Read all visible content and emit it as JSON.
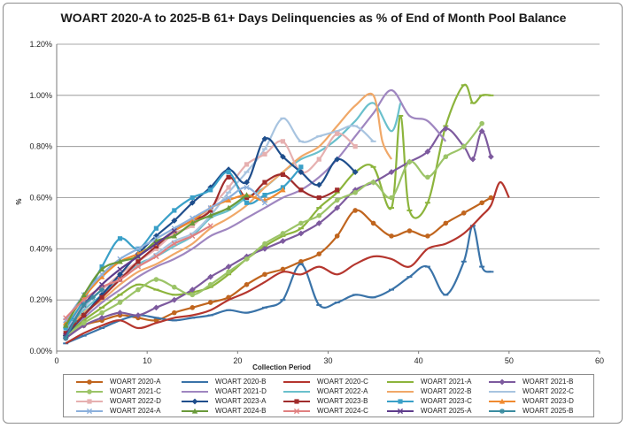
{
  "chart_data": {
    "type": "line",
    "title": "WOART 2020-A to 2025-B 61+ Days Delinquencies as % of End of Month Pool Balance",
    "xlabel": "Collection Period",
    "ylabel": "%",
    "xlim": [
      0,
      60
    ],
    "ylim": [
      0,
      1.2
    ],
    "x_ticks": [
      "0",
      "10",
      "20",
      "30",
      "40",
      "50",
      "60"
    ],
    "y_ticks": [
      "0.00%",
      "0.20%",
      "0.40%",
      "0.60%",
      "0.80%",
      "1.00%",
      "1.20%"
    ],
    "grid": true,
    "legend_position": "bottom",
    "series": [
      {
        "name": "WOART 2020-A",
        "color": "#c0651e",
        "marker": "circle",
        "x": [
          1,
          3,
          5,
          7,
          9,
          11,
          13,
          15,
          17,
          19,
          21,
          23,
          25,
          27,
          29,
          31,
          33,
          35,
          37,
          39,
          41,
          43,
          45,
          47,
          48
        ],
        "values": [
          0.05,
          0.1,
          0.12,
          0.14,
          0.13,
          0.12,
          0.15,
          0.17,
          0.19,
          0.21,
          0.26,
          0.3,
          0.32,
          0.35,
          0.38,
          0.45,
          0.55,
          0.5,
          0.45,
          0.47,
          0.45,
          0.5,
          0.54,
          0.58,
          0.6
        ]
      },
      {
        "name": "WOART 2020-B",
        "color": "#3a73a8",
        "marker": "dash",
        "x": [
          1,
          3,
          5,
          7,
          9,
          11,
          13,
          15,
          17,
          19,
          21,
          23,
          25,
          27,
          29,
          31,
          33,
          35,
          37,
          39,
          41,
          43,
          45,
          46,
          47,
          48
        ],
        "values": [
          0.03,
          0.06,
          0.09,
          0.12,
          0.14,
          0.13,
          0.12,
          0.13,
          0.14,
          0.16,
          0.15,
          0.17,
          0.2,
          0.34,
          0.18,
          0.19,
          0.22,
          0.21,
          0.24,
          0.29,
          0.33,
          0.22,
          0.35,
          0.49,
          0.33,
          0.31
        ]
      },
      {
        "name": "WOART 2020-C",
        "color": "#b5362e",
        "marker": "none",
        "x": [
          1,
          3,
          5,
          7,
          9,
          11,
          13,
          15,
          17,
          19,
          21,
          23,
          25,
          27,
          29,
          31,
          33,
          35,
          37,
          39,
          41,
          43,
          45,
          47,
          48,
          49,
          50
        ],
        "values": [
          0.03,
          0.07,
          0.1,
          0.12,
          0.09,
          0.11,
          0.13,
          0.14,
          0.16,
          0.2,
          0.23,
          0.27,
          0.31,
          0.3,
          0.33,
          0.3,
          0.34,
          0.37,
          0.36,
          0.33,
          0.4,
          0.42,
          0.46,
          0.53,
          0.57,
          0.66,
          0.6
        ]
      },
      {
        "name": "WOART 2021-A",
        "color": "#8cb43c",
        "marker": "dash",
        "x": [
          1,
          3,
          5,
          7,
          9,
          11,
          13,
          15,
          17,
          19,
          21,
          23,
          25,
          27,
          29,
          31,
          33,
          35,
          37,
          38,
          39,
          41,
          43,
          45,
          46,
          47,
          48
        ],
        "values": [
          0.06,
          0.12,
          0.17,
          0.22,
          0.26,
          0.24,
          0.22,
          0.23,
          0.25,
          0.3,
          0.36,
          0.41,
          0.45,
          0.48,
          0.56,
          0.62,
          0.7,
          0.72,
          0.56,
          0.92,
          0.55,
          0.58,
          0.88,
          1.04,
          0.97,
          1.0,
          1.0
        ]
      },
      {
        "name": "WOART 2021-B",
        "color": "#7d5a9e",
        "marker": "diamond",
        "x": [
          1,
          3,
          5,
          7,
          9,
          11,
          13,
          15,
          17,
          19,
          21,
          23,
          25,
          27,
          29,
          31,
          33,
          35,
          37,
          39,
          41,
          43,
          45,
          46,
          47,
          48
        ],
        "values": [
          0.05,
          0.1,
          0.13,
          0.15,
          0.14,
          0.17,
          0.2,
          0.24,
          0.29,
          0.33,
          0.37,
          0.4,
          0.43,
          0.46,
          0.5,
          0.56,
          0.63,
          0.66,
          0.7,
          0.74,
          0.78,
          0.87,
          0.8,
          0.75,
          0.86,
          0.76
        ]
      },
      {
        "name": "WOART 2021-C",
        "color": "#9cc468",
        "marker": "circle",
        "x": [
          1,
          3,
          5,
          7,
          9,
          11,
          13,
          15,
          17,
          19,
          21,
          23,
          25,
          27,
          29,
          31,
          33,
          35,
          37,
          39,
          41,
          43,
          45,
          47
        ],
        "values": [
          0.06,
          0.11,
          0.15,
          0.19,
          0.24,
          0.28,
          0.25,
          0.22,
          0.26,
          0.31,
          0.36,
          0.42,
          0.46,
          0.5,
          0.53,
          0.59,
          0.62,
          0.66,
          0.6,
          0.74,
          0.68,
          0.76,
          0.8,
          0.89
        ]
      },
      {
        "name": "WOART 2021-D",
        "color": "#9f86c0",
        "marker": "none",
        "x": [
          1,
          3,
          5,
          7,
          9,
          11,
          13,
          15,
          17,
          19,
          21,
          23,
          25,
          27,
          29,
          31,
          33,
          35,
          37,
          39,
          41,
          43
        ],
        "values": [
          0.07,
          0.13,
          0.19,
          0.24,
          0.29,
          0.33,
          0.36,
          0.4,
          0.45,
          0.48,
          0.52,
          0.56,
          0.6,
          0.63,
          0.68,
          0.75,
          0.84,
          0.93,
          1.02,
          0.92,
          0.9,
          0.82
        ]
      },
      {
        "name": "WOART 2022-A",
        "color": "#6ac0cc",
        "marker": "none",
        "x": [
          1,
          3,
          5,
          7,
          9,
          11,
          13,
          15,
          17,
          19,
          21,
          23,
          25,
          27,
          29,
          31,
          33,
          35,
          37,
          38
        ],
        "values": [
          0.08,
          0.16,
          0.22,
          0.28,
          0.34,
          0.37,
          0.41,
          0.45,
          0.52,
          0.55,
          0.6,
          0.64,
          0.7,
          0.75,
          0.78,
          0.83,
          0.9,
          0.97,
          0.86,
          0.97
        ]
      },
      {
        "name": "WOART 2022-B",
        "color": "#f0a868",
        "marker": "none",
        "x": [
          1,
          3,
          5,
          7,
          9,
          11,
          13,
          15,
          17,
          19,
          21,
          23,
          25,
          27,
          29,
          31,
          33,
          35,
          36,
          37
        ],
        "values": [
          0.07,
          0.15,
          0.2,
          0.26,
          0.31,
          0.34,
          0.38,
          0.42,
          0.48,
          0.52,
          0.57,
          0.64,
          0.7,
          0.76,
          0.8,
          0.88,
          0.96,
          1.0,
          0.82,
          0.75
        ]
      },
      {
        "name": "WOART 2022-C",
        "color": "#a8c4e0",
        "marker": "dash",
        "x": [
          1,
          3,
          5,
          7,
          9,
          11,
          13,
          15,
          17,
          19,
          21,
          23,
          25,
          27,
          29,
          31,
          33,
          35
        ],
        "values": [
          0.09,
          0.17,
          0.24,
          0.29,
          0.33,
          0.38,
          0.43,
          0.46,
          0.53,
          0.62,
          0.7,
          0.79,
          0.91,
          0.82,
          0.84,
          0.86,
          0.88,
          0.82
        ]
      },
      {
        "name": "WOART 2022-D",
        "color": "#e6b0b0",
        "marker": "square",
        "x": [
          1,
          3,
          5,
          7,
          9,
          11,
          13,
          15,
          17,
          19,
          21,
          23,
          25,
          27,
          29,
          31,
          33
        ],
        "values": [
          0.1,
          0.18,
          0.24,
          0.3,
          0.35,
          0.4,
          0.46,
          0.49,
          0.56,
          0.64,
          0.73,
          0.77,
          0.82,
          0.7,
          0.75,
          0.85,
          0.8
        ]
      },
      {
        "name": "WOART 2023-A",
        "color": "#1f4e8c",
        "marker": "diamond",
        "x": [
          1,
          3,
          5,
          7,
          9,
          11,
          13,
          15,
          17,
          19,
          21,
          23,
          25,
          27,
          29,
          31,
          33
        ],
        "values": [
          0.06,
          0.14,
          0.22,
          0.3,
          0.38,
          0.45,
          0.51,
          0.58,
          0.64,
          0.71,
          0.66,
          0.83,
          0.76,
          0.7,
          0.65,
          0.75,
          0.7
        ]
      },
      {
        "name": "WOART 2023-B",
        "color": "#a02c2c",
        "marker": "square",
        "x": [
          1,
          3,
          5,
          7,
          9,
          11,
          13,
          15,
          17,
          19,
          21,
          23,
          25,
          27,
          29,
          31
        ],
        "values": [
          0.07,
          0.14,
          0.21,
          0.28,
          0.35,
          0.41,
          0.47,
          0.51,
          0.55,
          0.68,
          0.6,
          0.66,
          0.69,
          0.63,
          0.6,
          0.63
        ]
      },
      {
        "name": "WOART 2023-C",
        "color": "#3aa0c8",
        "marker": "square",
        "x": [
          1,
          3,
          5,
          7,
          9,
          11,
          13,
          15,
          17,
          19,
          21,
          23,
          25,
          27
        ],
        "values": [
          0.09,
          0.2,
          0.33,
          0.44,
          0.4,
          0.48,
          0.55,
          0.6,
          0.63,
          0.7,
          0.58,
          0.61,
          0.64,
          0.72
        ]
      },
      {
        "name": "WOART 2023-D",
        "color": "#f08a30",
        "marker": "triangle",
        "x": [
          1,
          3,
          5,
          7,
          9,
          11,
          13,
          15,
          17,
          19,
          21,
          23,
          25
        ],
        "values": [
          0.11,
          0.21,
          0.29,
          0.35,
          0.38,
          0.42,
          0.47,
          0.51,
          0.56,
          0.59,
          0.61,
          0.59,
          0.63
        ]
      },
      {
        "name": "WOART 2024-A",
        "color": "#8cb0dc",
        "marker": "cross",
        "x": [
          1,
          3,
          5,
          7,
          9,
          11,
          13,
          15,
          17,
          19,
          21,
          23
        ],
        "values": [
          0.12,
          0.22,
          0.3,
          0.36,
          0.4,
          0.44,
          0.48,
          0.52,
          0.56,
          0.6,
          0.64,
          0.58
        ]
      },
      {
        "name": "WOART 2024-B",
        "color": "#6a9a3a",
        "marker": "triangle",
        "x": [
          1,
          3,
          5,
          7,
          9,
          11,
          13,
          15,
          17,
          19,
          21
        ],
        "values": [
          0.1,
          0.22,
          0.32,
          0.35,
          0.37,
          0.43,
          0.45,
          0.5,
          0.53,
          0.56,
          0.61
        ]
      },
      {
        "name": "WOART 2024-C",
        "color": "#e08080",
        "marker": "cross",
        "x": [
          1,
          3,
          5,
          7,
          9,
          11,
          13,
          15,
          17
        ],
        "values": [
          0.13,
          0.2,
          0.25,
          0.28,
          0.33,
          0.37,
          0.42,
          0.45,
          0.49
        ]
      },
      {
        "name": "WOART 2025-A",
        "color": "#5e3c8c",
        "marker": "cross",
        "x": [
          1,
          3,
          5,
          7,
          9,
          11,
          13
        ],
        "values": [
          0.06,
          0.18,
          0.26,
          0.32,
          0.37,
          0.42,
          0.47
        ]
      },
      {
        "name": "WOART 2025-B",
        "color": "#3a8ca0",
        "marker": "star",
        "x": [
          1,
          2,
          3,
          4,
          5
        ],
        "values": [
          0.05,
          0.12,
          0.18,
          0.21,
          0.24
        ]
      }
    ]
  }
}
